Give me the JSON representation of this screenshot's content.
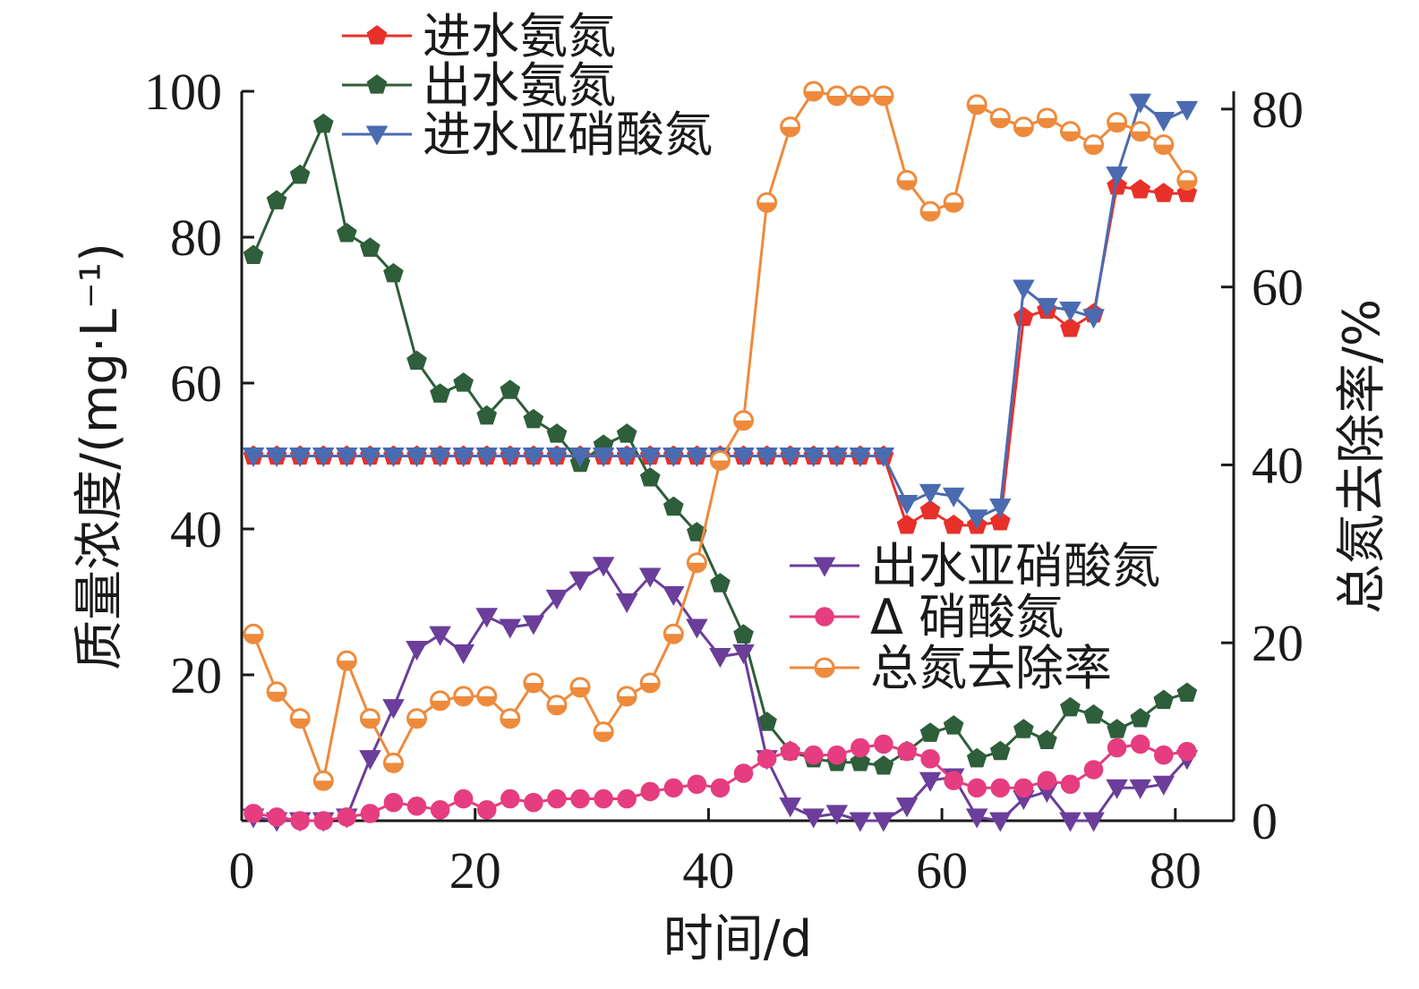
{
  "chart_data": {
    "type": "line",
    "xlabel": "时间/d",
    "ylabel_left": "质量浓度/(mg·L⁻¹)",
    "ylabel_right": "总氮去除率/%",
    "xlim": [
      0,
      85
    ],
    "ylim_left": [
      0,
      100
    ],
    "ylim_right": [
      0,
      82
    ],
    "x_ticks": [
      0,
      20,
      40,
      60,
      80
    ],
    "y_left_ticks": [
      20,
      40,
      60,
      80,
      100
    ],
    "y_right_ticks": [
      0,
      20,
      40,
      60,
      80
    ],
    "x_tick_labels": [
      "0",
      "20",
      "40",
      "60",
      "80"
    ],
    "y_left_tick_labels": [
      "20",
      "40",
      "60",
      "80",
      "100"
    ],
    "y_right_tick_labels": [
      "0",
      "20",
      "40",
      "60",
      "80"
    ],
    "grid": false,
    "legend_groups": [
      {
        "placement": "top-left",
        "series": [
          0,
          1,
          2
        ]
      },
      {
        "placement": "center-right",
        "series": [
          3,
          4,
          5
        ]
      }
    ],
    "series": [
      {
        "name": "进水氨氮",
        "axis": "left",
        "color": "#e8302a",
        "marker": "pentagon",
        "x": [
          1,
          3,
          5,
          7,
          9,
          11,
          13,
          15,
          17,
          19,
          21,
          23,
          25,
          27,
          29,
          31,
          33,
          35,
          37,
          39,
          41,
          43,
          45,
          47,
          49,
          51,
          53,
          55,
          57,
          59,
          61,
          63,
          65,
          67,
          69,
          71,
          73,
          75,
          77,
          79,
          81
        ],
        "y": [
          50,
          50,
          50,
          50,
          50,
          50,
          50,
          50,
          50,
          50,
          50,
          50,
          50,
          50,
          50,
          50,
          50,
          50,
          50,
          50,
          50,
          50,
          50,
          50,
          50,
          50,
          50,
          50,
          40.5,
          42.5,
          40.5,
          40.5,
          41,
          69,
          70,
          67.5,
          69.5,
          87,
          86.5,
          86,
          86
        ]
      },
      {
        "name": "出水氨氮",
        "axis": "left",
        "color": "#2e5e3a",
        "marker": "pentagon",
        "x": [
          1,
          3,
          5,
          7,
          9,
          11,
          13,
          15,
          17,
          19,
          21,
          23,
          25,
          27,
          29,
          31,
          33,
          35,
          37,
          39,
          41,
          43,
          45,
          47,
          49,
          51,
          53,
          55,
          57,
          59,
          61,
          63,
          65,
          67,
          69,
          71,
          73,
          75,
          77,
          79,
          81
        ],
        "y": [
          77.5,
          85,
          88.5,
          95.5,
          80.5,
          78.5,
          75,
          63,
          58.5,
          60,
          55.5,
          59,
          55,
          53,
          49,
          51.5,
          53,
          47,
          43,
          39.5,
          32.5,
          25.5,
          13.5,
          9.5,
          8.5,
          8,
          8,
          7.5,
          9.5,
          12,
          13,
          8.5,
          9.5,
          12.5,
          11,
          15.5,
          14.5,
          12.5,
          14,
          16.5,
          17.5
        ]
      },
      {
        "name": "进水亚硝酸氮",
        "axis": "left",
        "color": "#4a6bb0",
        "marker": "triangle-down",
        "x": [
          1,
          3,
          5,
          7,
          9,
          11,
          13,
          15,
          17,
          19,
          21,
          23,
          25,
          27,
          29,
          31,
          33,
          35,
          37,
          39,
          41,
          43,
          45,
          47,
          49,
          51,
          53,
          55,
          57,
          59,
          61,
          63,
          65,
          67,
          69,
          71,
          73,
          75,
          77,
          79,
          81
        ],
        "y": [
          50,
          50,
          50,
          50,
          50,
          50,
          50,
          50,
          50,
          50,
          50,
          50,
          50,
          50,
          50,
          50,
          50,
          50,
          50,
          50,
          50,
          50,
          50,
          50,
          50,
          50,
          50,
          50,
          43.5,
          45,
          44.5,
          41.5,
          43,
          73,
          70.5,
          70,
          69,
          88.5,
          98.5,
          96,
          97.5
        ]
      },
      {
        "name": "出水亚硝酸氮",
        "axis": "left",
        "color": "#6a3e9a",
        "marker": "triangle-down",
        "x": [
          1,
          3,
          5,
          7,
          9,
          11,
          13,
          15,
          17,
          19,
          21,
          23,
          25,
          27,
          29,
          31,
          33,
          35,
          37,
          39,
          41,
          43,
          45,
          47,
          49,
          51,
          53,
          55,
          57,
          59,
          61,
          63,
          65,
          67,
          69,
          71,
          73,
          75,
          77,
          79,
          81
        ],
        "y": [
          0.5,
          0,
          0,
          0,
          0.5,
          8.5,
          15.5,
          23.5,
          25.5,
          23,
          28,
          26.5,
          27,
          30.5,
          33,
          35,
          30,
          33.5,
          31,
          26.5,
          22.5,
          23,
          8.5,
          2,
          0.5,
          1,
          0,
          0,
          2,
          5.5,
          6,
          0.5,
          0,
          3,
          4,
          0,
          0,
          4.5,
          4.5,
          5,
          8.5
        ]
      },
      {
        "name": "Δ 硝酸氮",
        "axis": "left",
        "color": "#e53d7f",
        "marker": "circle",
        "x": [
          1,
          3,
          5,
          7,
          9,
          11,
          13,
          15,
          17,
          19,
          21,
          23,
          25,
          27,
          29,
          31,
          33,
          35,
          37,
          39,
          41,
          43,
          45,
          47,
          49,
          51,
          53,
          55,
          57,
          59,
          61,
          63,
          65,
          67,
          69,
          71,
          73,
          75,
          77,
          79,
          81
        ],
        "y": [
          1,
          0.5,
          0,
          0,
          0.5,
          1,
          2.5,
          2,
          1.5,
          3,
          1.5,
          3,
          2.5,
          3,
          3,
          3,
          3,
          4,
          4.5,
          5,
          4.5,
          6.5,
          8.5,
          9.5,
          9,
          9,
          10,
          10.5,
          9.5,
          8.5,
          5.5,
          4.5,
          4.5,
          4.5,
          5.5,
          5,
          7,
          10,
          10.5,
          9,
          9.5
        ]
      },
      {
        "name": "总氮去除率",
        "axis": "right",
        "color": "#ee8a3c",
        "marker": "circle-half",
        "x": [
          1,
          3,
          5,
          7,
          9,
          11,
          13,
          15,
          17,
          19,
          21,
          23,
          25,
          27,
          29,
          31,
          33,
          35,
          37,
          39,
          41,
          43,
          45,
          47,
          49,
          51,
          53,
          55,
          57,
          59,
          61,
          63,
          65,
          67,
          69,
          71,
          73,
          75,
          77,
          79,
          81
        ],
        "y": [
          21,
          14.5,
          11.5,
          4.5,
          18,
          11.5,
          6.5,
          11.5,
          13.5,
          14,
          14,
          11.5,
          15.5,
          13,
          15,
          10,
          14,
          15.5,
          21,
          29,
          40.5,
          45,
          69.5,
          78,
          82,
          81.5,
          81.5,
          81.5,
          72,
          68.5,
          69.5,
          80.5,
          79,
          78,
          79,
          77.5,
          76,
          78.5,
          77.5,
          76,
          72
        ]
      }
    ]
  }
}
